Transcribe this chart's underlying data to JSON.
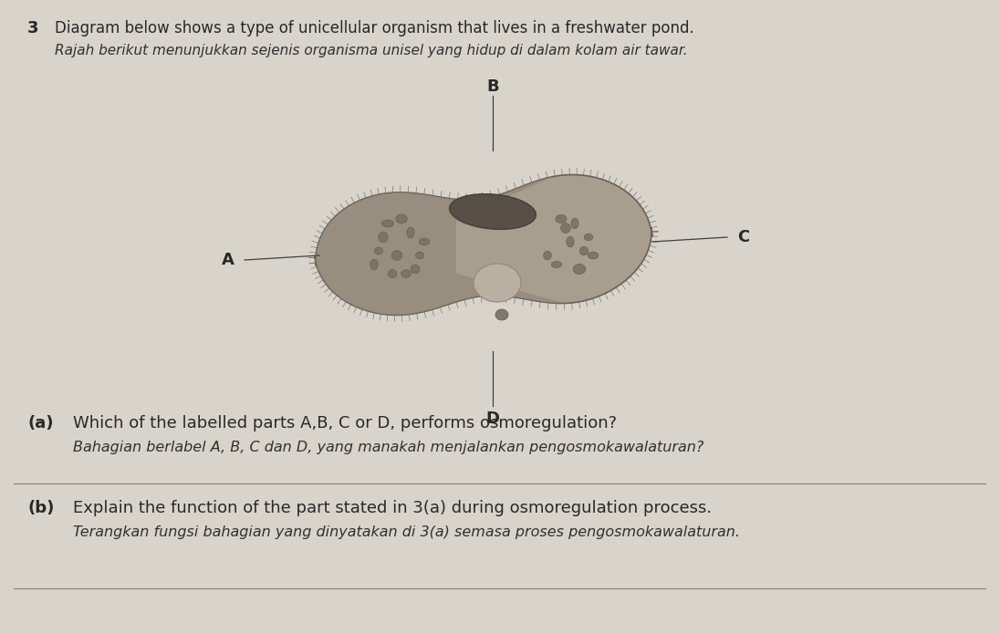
{
  "bg_color": "#d8d4cc",
  "paper_color": "#d0ccc4",
  "question_number": "3",
  "line1_en": "Diagram below shows a type of unicellular organism that lives in a freshwater pond.",
  "line1_my": "Rajah berikut menunjukkan sejenis organisma unisel yang hidup di dalam kolam air tawar.",
  "label_A": "A",
  "label_B": "B",
  "label_C": "C",
  "label_D": "D",
  "qa_label": "(a)",
  "qa_en": "Which of the labelled parts A,B, C or D, performs osmoregulation?",
  "qa_my": "Bahagian berlabel A, B, C dan D, yang manakah menjalankan pengosmokawalaturan?",
  "qb_label": "(b)",
  "qb_en": "Explain the function of the part stated in 3(a) during osmoregulation process.",
  "qb_my": "Terangkan fungsi bahagian yang dinyatakan di 3(a) semasa proses pengosmokawalaturan.",
  "cell_left_color": "#908878",
  "cell_right_color": "#a89e90",
  "cell_edge_color": "#686058",
  "nucleus_color": "#585048",
  "text_color": "#282828",
  "italic_color": "#303030",
  "line_color": "#404040",
  "cilia_color": "#686058"
}
